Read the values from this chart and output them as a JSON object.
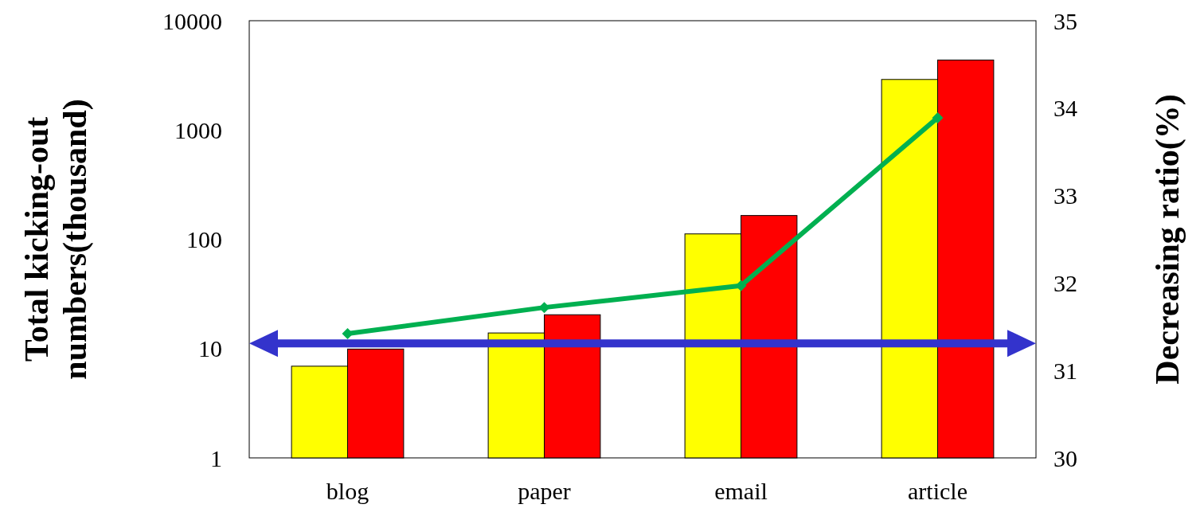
{
  "chart_data": {
    "type": "bar",
    "log": "y",
    "categories": [
      "blog",
      "paper",
      "email",
      "article"
    ],
    "ylabel": "Total kicking-out numbers(thousand)",
    "y2label": "Decreasing ratio(%)",
    "ylim": [
      1,
      10000
    ],
    "yticks": [
      1,
      10,
      100,
      1000,
      10000
    ],
    "y2lim": [
      30,
      35
    ],
    "y2ticks": [
      30,
      31,
      32,
      33,
      34,
      35
    ],
    "series": [
      {
        "color": "#ffff00",
        "values": [
          6.9,
          13.9,
          112,
          2900
        ]
      },
      {
        "color": "#ff0000",
        "values": [
          9.9,
          20.4,
          165,
          4370
        ]
      },
      {
        "type": "line",
        "axis": "y2",
        "color": "#00b050",
        "marker": "diamond",
        "values": [
          31.42,
          31.72,
          31.97,
          33.89
        ]
      }
    ],
    "ref_lines": [
      {
        "axis": "y2",
        "value": 31.31,
        "color": "#3333cc"
      }
    ],
    "grid": false
  }
}
